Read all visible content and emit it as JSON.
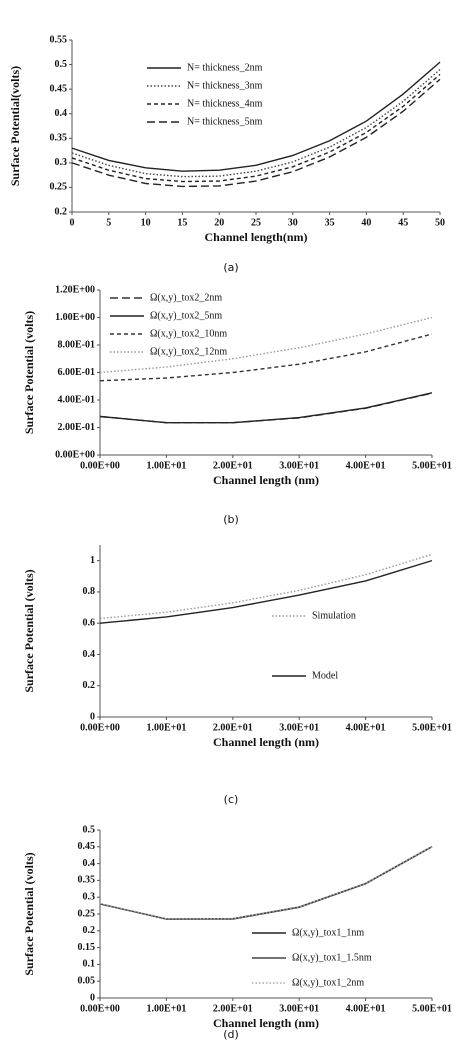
{
  "chart_data": [
    {
      "type": "line",
      "caption": "(a)",
      "xlabel": "Channel length(nm)",
      "ylabel": "Surface Potential(volts)",
      "x": [
        0,
        5,
        10,
        15,
        20,
        25,
        30,
        35,
        40,
        45,
        50
      ],
      "xlim": [
        0,
        50
      ],
      "xticks": [
        0,
        5,
        10,
        15,
        20,
        25,
        30,
        35,
        40,
        45,
        50
      ],
      "ylim": [
        0.2,
        0.55
      ],
      "yticks": [
        0.2,
        0.25,
        0.3,
        0.35,
        0.4,
        0.45,
        0.5,
        0.55
      ],
      "legend": "upper center",
      "series": [
        {
          "name": "N= thickness_2nm",
          "color": "#222222",
          "style": "solid",
          "values": [
            0.33,
            0.305,
            0.29,
            0.283,
            0.285,
            0.295,
            0.315,
            0.345,
            0.385,
            0.44,
            0.505
          ]
        },
        {
          "name": "N= thickness_3nm",
          "color": "#444444",
          "style": "dotted",
          "values": [
            0.32,
            0.295,
            0.278,
            0.272,
            0.273,
            0.283,
            0.302,
            0.332,
            0.372,
            0.425,
            0.49
          ]
        },
        {
          "name": "N= thickness_4nm",
          "color": "#222222",
          "style": "dashed",
          "values": [
            0.31,
            0.285,
            0.268,
            0.262,
            0.263,
            0.273,
            0.292,
            0.322,
            0.362,
            0.415,
            0.48
          ]
        },
        {
          "name": "N= thickness_5nm",
          "color": "#222222",
          "style": "longdash",
          "values": [
            0.3,
            0.275,
            0.258,
            0.252,
            0.253,
            0.263,
            0.282,
            0.312,
            0.352,
            0.405,
            0.47
          ]
        }
      ]
    },
    {
      "type": "line",
      "caption": "(b)",
      "xlabel": "Channel length (nm)",
      "ylabel": "Surface Potential (volts)",
      "x": [
        0,
        10,
        20,
        30,
        40,
        50
      ],
      "xlim": [
        0,
        50
      ],
      "xticks": [
        {
          "value": 0,
          "label": "0.00E+00"
        },
        {
          "value": 10,
          "label": "1.00E+01"
        },
        {
          "value": 20,
          "label": "2.00E+01"
        },
        {
          "value": 30,
          "label": "3.00E+01"
        },
        {
          "value": 40,
          "label": "4.00E+01"
        },
        {
          "value": 50,
          "label": "5.00E+01"
        }
      ],
      "ylim": [
        0,
        1.2
      ],
      "yticks": [
        {
          "value": 0,
          "label": "0.00E+00"
        },
        {
          "value": 0.2,
          "label": "2.00E-01"
        },
        {
          "value": 0.4,
          "label": "4.00E-01"
        },
        {
          "value": 0.6,
          "label": "6.00E-01"
        },
        {
          "value": 0.8,
          "label": "8.00E-01"
        },
        {
          "value": 1,
          "label": "1.00E+00"
        },
        {
          "value": 1.2,
          "label": "1.20E+00"
        }
      ],
      "legend": "upper left",
      "series": [
        {
          "name": "Ω(x,y)_tox2_2nm",
          "color": "#333333",
          "style": "longdash",
          "values": [
            0.28,
            0.235,
            0.235,
            0.27,
            0.34,
            0.45
          ]
        },
        {
          "name": "Ω(x,y)_tox2_5nm",
          "color": "#222222",
          "style": "solid",
          "values": [
            0.28,
            0.235,
            0.235,
            0.272,
            0.342,
            0.452
          ]
        },
        {
          "name": "Ω(x,y)_tox2_10nm",
          "color": "#333333",
          "style": "dashed",
          "values": [
            0.54,
            0.56,
            0.6,
            0.66,
            0.75,
            0.88
          ]
        },
        {
          "name": "Ω(x,y)_tox2_12nm",
          "color": "#999999",
          "style": "dotted",
          "values": [
            0.6,
            0.64,
            0.7,
            0.78,
            0.88,
            1.0
          ]
        }
      ]
    },
    {
      "type": "line",
      "caption": "(c)",
      "xlabel": "Channel length (nm)",
      "ylabel": "Surface Potential (volts)",
      "x": [
        0,
        10,
        20,
        30,
        40,
        50
      ],
      "xlim": [
        0,
        50
      ],
      "xticks": [
        {
          "value": 0,
          "label": "0.00E+00"
        },
        {
          "value": 10,
          "label": "1.00E+01"
        },
        {
          "value": 20,
          "label": "2.00E+01"
        },
        {
          "value": 30,
          "label": "3.00E+01"
        },
        {
          "value": 40,
          "label": "4.00E+01"
        },
        {
          "value": 50,
          "label": "5.00E+01"
        }
      ],
      "ylim": [
        0,
        1.1
      ],
      "yticks": [
        0,
        0.2,
        0.4,
        0.6,
        0.8,
        1
      ],
      "legend": "center right",
      "series": [
        {
          "name": "Simulation",
          "color": "#999999",
          "style": "dotted",
          "values": [
            0.63,
            0.67,
            0.73,
            0.81,
            0.91,
            1.04
          ]
        },
        {
          "name": "Model",
          "color": "#222222",
          "style": "solid",
          "values": [
            0.6,
            0.64,
            0.7,
            0.78,
            0.87,
            1.0
          ]
        }
      ]
    },
    {
      "type": "line",
      "caption": "(d)",
      "xlabel": "Channel length (nm)",
      "ylabel": "Surface Potential (volts)",
      "x": [
        0,
        10,
        20,
        30,
        40,
        50
      ],
      "xlim": [
        0,
        50
      ],
      "xticks": [
        {
          "value": 0,
          "label": "0.00E+00"
        },
        {
          "value": 10,
          "label": "1.00E+01"
        },
        {
          "value": 20,
          "label": "2.00E+01"
        },
        {
          "value": 30,
          "label": "3.00E+01"
        },
        {
          "value": 40,
          "label": "4.00E+01"
        },
        {
          "value": 50,
          "label": "5.00E+01"
        }
      ],
      "ylim": [
        0,
        0.5
      ],
      "yticks": [
        0,
        0.05,
        0.1,
        0.15,
        0.2,
        0.25,
        0.3,
        0.35,
        0.4,
        0.45,
        0.5
      ],
      "legend": "lower right",
      "series": [
        {
          "name": "Ω(x,y)_tox1_1nm",
          "color": "#222222",
          "style": "solid",
          "values": [
            0.28,
            0.235,
            0.235,
            0.27,
            0.34,
            0.45
          ]
        },
        {
          "name": "Ω(x,y)_tox1_1.5nm",
          "color": "#444444",
          "style": "solid",
          "values": [
            0.28,
            0.235,
            0.236,
            0.271,
            0.341,
            0.451
          ]
        },
        {
          "name": "Ω(x,y)_tox1_2nm",
          "color": "#aaaaaa",
          "style": "dotted",
          "values": [
            0.281,
            0.236,
            0.236,
            0.271,
            0.341,
            0.451
          ]
        }
      ]
    }
  ]
}
